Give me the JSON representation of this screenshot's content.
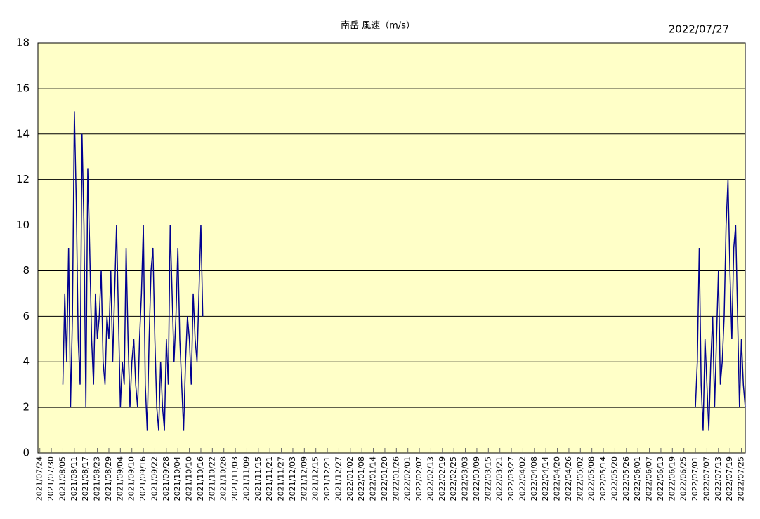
{
  "chart_data": {
    "type": "line",
    "title": "南岳 風速（m/s）",
    "date_label": "2022/07/27",
    "background": "#ffffc8",
    "grid": true,
    "ylim": [
      0,
      18
    ],
    "yticks": [
      0,
      2,
      4,
      6,
      8,
      10,
      12,
      14,
      16,
      18
    ],
    "xlim": [
      "2021/07/23",
      "2022/07/27"
    ],
    "xticks": [
      "2021/07/24",
      "2021/07/30",
      "2021/08/05",
      "2021/08/11",
      "2021/08/17",
      "2021/08/23",
      "2021/08/29",
      "2021/09/04",
      "2021/09/10",
      "2021/09/16",
      "2021/09/22",
      "2021/09/28",
      "2021/10/04",
      "2021/10/10",
      "2021/10/16",
      "2021/10/22",
      "2021/10/28",
      "2021/11/03",
      "2021/11/09",
      "2021/11/15",
      "2021/11/21",
      "2021/11/27",
      "2021/12/03",
      "2021/12/09",
      "2021/12/15",
      "2021/12/21",
      "2021/12/27",
      "2022/01/02",
      "2022/01/08",
      "2022/01/14",
      "2022/01/20",
      "2022/01/26",
      "2022/02/01",
      "2022/02/07",
      "2022/02/13",
      "2022/02/19",
      "2022/02/25",
      "2022/03/03",
      "2022/03/09",
      "2022/03/15",
      "2022/03/21",
      "2022/03/27",
      "2022/04/02",
      "2022/04/08",
      "2022/04/14",
      "2022/04/20",
      "2022/04/26",
      "2022/05/02",
      "2022/05/08",
      "2022/05/14",
      "2022/05/20",
      "2022/05/26",
      "2022/06/01",
      "2022/06/07",
      "2022/06/13",
      "2022/06/19",
      "2022/06/25",
      "2022/07/01",
      "2022/07/07",
      "2022/07/13",
      "2022/07/19",
      "2022/07/25"
    ],
    "x": [
      "2021/08/05",
      "2021/08/06",
      "2021/08/07",
      "2021/08/08",
      "2021/08/09",
      "2021/08/10",
      "2021/08/11",
      "2021/08/12",
      "2021/08/13",
      "2021/08/14",
      "2021/08/15",
      "2021/08/16",
      "2021/08/17",
      "2021/08/18",
      "2021/08/19",
      "2021/08/20",
      "2021/08/21",
      "2021/08/22",
      "2021/08/23",
      "2021/08/24",
      "2021/08/25",
      "2021/08/26",
      "2021/08/27",
      "2021/08/28",
      "2021/08/29",
      "2021/08/30",
      "2021/08/31",
      "2021/09/01",
      "2021/09/02",
      "2021/09/03",
      "2021/09/04",
      "2021/09/05",
      "2021/09/06",
      "2021/09/07",
      "2021/09/08",
      "2021/09/09",
      "2021/09/10",
      "2021/09/11",
      "2021/09/12",
      "2021/09/13",
      "2021/09/14",
      "2021/09/15",
      "2021/09/16",
      "2021/09/17",
      "2021/09/18",
      "2021/09/19",
      "2021/09/20",
      "2021/09/21",
      "2021/09/22",
      "2021/09/23",
      "2021/09/24",
      "2021/09/25",
      "2021/09/26",
      "2021/09/27",
      "2021/09/28",
      "2021/09/29",
      "2021/09/30",
      "2021/10/01",
      "2021/10/02",
      "2021/10/03",
      "2021/10/04",
      "2021/10/05",
      "2021/10/06",
      "2021/10/07",
      "2021/10/08",
      "2021/10/09",
      "2021/10/10",
      "2021/10/11",
      "2021/10/12",
      "2021/10/13",
      "2021/10/14",
      "2021/10/15",
      "2021/10/16",
      "2021/10/17",
      "2021/10/18",
      "2022/07/01",
      "2022/07/02",
      "2022/07/03",
      "2022/07/04",
      "2022/07/05",
      "2022/07/06",
      "2022/07/07",
      "2022/07/08",
      "2022/07/09",
      "2022/07/10",
      "2022/07/11",
      "2022/07/12",
      "2022/07/13",
      "2022/07/14",
      "2022/07/15",
      "2022/07/16",
      "2022/07/17",
      "2022/07/18",
      "2022/07/19",
      "2022/07/20",
      "2022/07/21",
      "2022/07/22",
      "2022/07/23",
      "2022/07/24",
      "2022/07/25",
      "2022/07/26",
      "2022/07/27"
    ],
    "series": [
      {
        "name": "風速",
        "color": "#000090",
        "values": [
          3,
          7,
          4,
          9,
          2,
          6,
          15,
          11,
          5,
          3,
          14,
          10,
          2,
          12.5,
          9,
          5,
          3,
          7,
          5,
          6,
          8,
          4,
          3,
          6,
          5,
          8,
          4,
          7,
          10,
          6,
          2,
          4,
          3,
          9,
          5,
          2,
          4,
          5,
          3,
          2,
          5,
          7,
          10,
          3,
          1,
          5,
          8,
          9,
          5,
          2,
          1,
          4,
          2,
          1,
          5,
          3,
          10,
          7,
          4,
          6,
          9,
          5,
          3,
          1,
          4,
          6,
          5,
          3,
          7,
          5,
          4,
          7,
          10,
          6,
          null,
          2,
          4,
          9,
          3,
          1,
          5,
          3,
          1,
          4,
          6,
          2,
          5,
          8,
          3,
          4,
          6,
          10,
          12,
          8,
          5,
          9,
          10,
          6,
          2,
          5,
          3,
          2
        ]
      }
    ]
  }
}
